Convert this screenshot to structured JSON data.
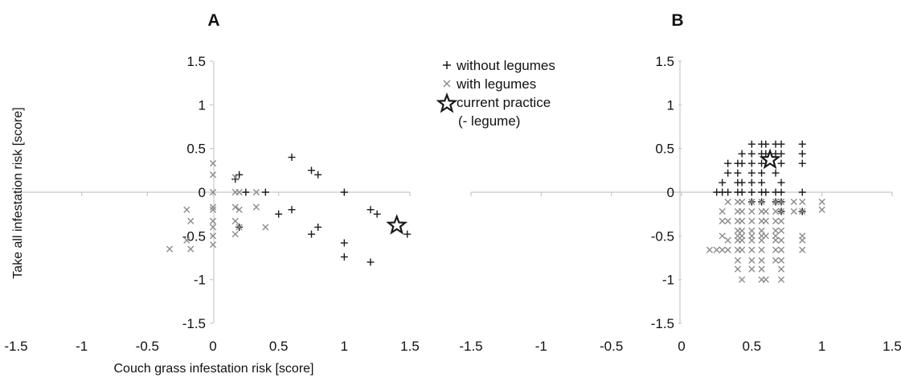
{
  "colors": {
    "without_legumes": "#1a1a1a",
    "with_legumes": "#8c8c8c",
    "axis": "#c8c8c8",
    "current_practice_star": "#1a1a1a"
  },
  "legend": {
    "without_legumes": "without legumes",
    "with_legumes": "with legumes",
    "current_practice_line1": "current practice",
    "current_practice_line2": "(- legume)"
  },
  "chart_data": [
    {
      "panel": "A",
      "type": "scatter",
      "title": "",
      "xlabel": "Couch grass infestation risk [score]",
      "ylabel": "Take all infestation risk [score]",
      "xlim": [
        -1.5,
        1.5
      ],
      "ylim": [
        -1.5,
        1.5
      ],
      "x_ticks": [
        "-1.5",
        "-1",
        "-0.5",
        "0",
        "0.5",
        "1",
        "1.5"
      ],
      "y_ticks": [
        "1.5",
        "1",
        "0.5",
        "0",
        "-0.5",
        "-1",
        "-1.5"
      ],
      "grid": false,
      "legend_position": "top-right",
      "series": [
        {
          "name": "without legumes",
          "marker": "plus",
          "points": [
            [
              0.6,
              0.4
            ],
            [
              0.75,
              0.25
            ],
            [
              0.8,
              0.2
            ],
            [
              0.2,
              0.2
            ],
            [
              0.17,
              0.15
            ],
            [
              0.25,
              0
            ],
            [
              0.4,
              0
            ],
            [
              1.0,
              0
            ],
            [
              0.6,
              -0.2
            ],
            [
              0.5,
              -0.25
            ],
            [
              0.8,
              -0.4
            ],
            [
              0.75,
              -0.48
            ],
            [
              0.2,
              -0.4
            ],
            [
              1.2,
              -0.2
            ],
            [
              1.25,
              -0.25
            ],
            [
              1.48,
              -0.48
            ],
            [
              1.0,
              -0.58
            ],
            [
              1.0,
              -0.74
            ],
            [
              1.2,
              -0.8
            ]
          ]
        },
        {
          "name": "with legumes",
          "marker": "x",
          "points": [
            [
              0,
              0.33
            ],
            [
              0,
              0.2
            ],
            [
              0,
              0
            ],
            [
              -0.2,
              -0.2
            ],
            [
              -0.33,
              -0.65
            ],
            [
              -0.2,
              -0.55
            ],
            [
              -0.17,
              -0.33
            ],
            [
              -0.17,
              -0.65
            ],
            [
              0,
              -0.17
            ],
            [
              0,
              -0.2
            ],
            [
              0,
              -0.33
            ],
            [
              0,
              -0.4
            ],
            [
              0,
              -0.5
            ],
            [
              0,
              -0.6
            ],
            [
              0.17,
              0.17
            ],
            [
              0.17,
              0
            ],
            [
              0.2,
              0
            ],
            [
              0.17,
              -0.17
            ],
            [
              0.2,
              -0.2
            ],
            [
              0.17,
              -0.33
            ],
            [
              0.2,
              -0.4
            ],
            [
              0.17,
              -0.48
            ],
            [
              0.33,
              0
            ],
            [
              0.33,
              -0.17
            ],
            [
              0.4,
              -0.4
            ]
          ]
        },
        {
          "name": "current practice (- legume)",
          "marker": "star",
          "points": [
            [
              1.4,
              -0.38
            ]
          ]
        }
      ]
    },
    {
      "panel": "B",
      "type": "scatter",
      "title": "",
      "xlabel": "",
      "ylabel": "",
      "xlim": [
        -1.5,
        1.5
      ],
      "ylim": [
        -1.5,
        1.5
      ],
      "x_ticks": [
        "-1.5",
        "-1",
        "-0.5",
        "0",
        "0.5",
        "1",
        "1.5"
      ],
      "y_ticks": [
        "1.5",
        "1",
        "0.5",
        "0",
        "-0.5",
        "-1",
        "-1.5"
      ],
      "grid": false,
      "series": [
        {
          "name": "without legumes",
          "marker": "plus",
          "points": [
            [
              0.5,
              0.55
            ],
            [
              0.57,
              0.55
            ],
            [
              0.6,
              0.55
            ],
            [
              0.67,
              0.55
            ],
            [
              0.71,
              0.55
            ],
            [
              0.86,
              0.55
            ],
            [
              0.43,
              0.44
            ],
            [
              0.5,
              0.44
            ],
            [
              0.57,
              0.44
            ],
            [
              0.6,
              0.44
            ],
            [
              0.67,
              0.44
            ],
            [
              0.71,
              0.44
            ],
            [
              0.86,
              0.44
            ],
            [
              0.33,
              0.33
            ],
            [
              0.4,
              0.33
            ],
            [
              0.43,
              0.33
            ],
            [
              0.5,
              0.33
            ],
            [
              0.57,
              0.33
            ],
            [
              0.6,
              0.33
            ],
            [
              0.71,
              0.33
            ],
            [
              0.86,
              0.33
            ],
            [
              0.33,
              0.22
            ],
            [
              0.4,
              0.22
            ],
            [
              0.5,
              0.22
            ],
            [
              0.57,
              0.22
            ],
            [
              0.67,
              0.22
            ],
            [
              0.29,
              0.11
            ],
            [
              0.4,
              0.11
            ],
            [
              0.43,
              0.11
            ],
            [
              0.5,
              0.11
            ],
            [
              0.57,
              0.11
            ],
            [
              0.71,
              0.11
            ],
            [
              0.25,
              0
            ],
            [
              0.29,
              0
            ],
            [
              0.33,
              0
            ],
            [
              0.4,
              0
            ],
            [
              0.43,
              0
            ],
            [
              0.5,
              0
            ],
            [
              0.57,
              0
            ],
            [
              0.6,
              0
            ],
            [
              0.67,
              0
            ],
            [
              0.71,
              0
            ],
            [
              0.86,
              0
            ],
            [
              0.5,
              -0.11
            ],
            [
              0.57,
              -0.11
            ],
            [
              0.67,
              -0.11
            ],
            [
              0.71,
              -0.11
            ],
            [
              0.71,
              -0.22
            ],
            [
              0.86,
              -0.22
            ]
          ]
        },
        {
          "name": "with legumes",
          "marker": "x",
          "points": [
            [
              0.33,
              -0.11
            ],
            [
              0.4,
              -0.11
            ],
            [
              0.43,
              -0.11
            ],
            [
              0.5,
              -0.11
            ],
            [
              0.57,
              -0.11
            ],
            [
              0.67,
              -0.11
            ],
            [
              0.71,
              -0.11
            ],
            [
              0.8,
              -0.11
            ],
            [
              0.86,
              -0.11
            ],
            [
              1.0,
              -0.11
            ],
            [
              0.29,
              -0.22
            ],
            [
              0.4,
              -0.22
            ],
            [
              0.43,
              -0.22
            ],
            [
              0.5,
              -0.22
            ],
            [
              0.57,
              -0.22
            ],
            [
              0.6,
              -0.22
            ],
            [
              0.67,
              -0.22
            ],
            [
              0.71,
              -0.22
            ],
            [
              0.8,
              -0.22
            ],
            [
              0.86,
              -0.22
            ],
            [
              1.0,
              -0.2
            ],
            [
              0.29,
              -0.33
            ],
            [
              0.33,
              -0.33
            ],
            [
              0.4,
              -0.33
            ],
            [
              0.43,
              -0.33
            ],
            [
              0.5,
              -0.33
            ],
            [
              0.57,
              -0.33
            ],
            [
              0.6,
              -0.33
            ],
            [
              0.67,
              -0.33
            ],
            [
              0.71,
              -0.33
            ],
            [
              0.4,
              -0.44
            ],
            [
              0.43,
              -0.44
            ],
            [
              0.5,
              -0.44
            ],
            [
              0.57,
              -0.44
            ],
            [
              0.67,
              -0.44
            ],
            [
              0.71,
              -0.44
            ],
            [
              0.86,
              -0.5
            ],
            [
              0.29,
              -0.5
            ],
            [
              0.4,
              -0.5
            ],
            [
              0.43,
              -0.5
            ],
            [
              0.5,
              -0.5
            ],
            [
              0.57,
              -0.5
            ],
            [
              0.6,
              -0.5
            ],
            [
              0.67,
              -0.5
            ],
            [
              0.33,
              -0.55
            ],
            [
              0.4,
              -0.55
            ],
            [
              0.43,
              -0.55
            ],
            [
              0.5,
              -0.55
            ],
            [
              0.57,
              -0.55
            ],
            [
              0.67,
              -0.55
            ],
            [
              0.71,
              -0.55
            ],
            [
              0.86,
              -0.55
            ],
            [
              0.2,
              -0.66
            ],
            [
              0.25,
              -0.66
            ],
            [
              0.29,
              -0.66
            ],
            [
              0.33,
              -0.66
            ],
            [
              0.4,
              -0.66
            ],
            [
              0.43,
              -0.66
            ],
            [
              0.5,
              -0.66
            ],
            [
              0.57,
              -0.66
            ],
            [
              0.67,
              -0.66
            ],
            [
              0.71,
              -0.66
            ],
            [
              0.86,
              -0.66
            ],
            [
              0.4,
              -0.78
            ],
            [
              0.5,
              -0.78
            ],
            [
              0.57,
              -0.78
            ],
            [
              0.67,
              -0.78
            ],
            [
              0.71,
              -0.78
            ],
            [
              0.4,
              -0.88
            ],
            [
              0.5,
              -0.88
            ],
            [
              0.57,
              -0.88
            ],
            [
              0.71,
              -0.88
            ],
            [
              0.43,
              -1.0
            ],
            [
              0.57,
              -1.0
            ],
            [
              0.6,
              -1.0
            ],
            [
              0.71,
              -1.0
            ]
          ]
        },
        {
          "name": "current practice (- legume)",
          "marker": "star",
          "points": [
            [
              0.63,
              0.37
            ]
          ]
        }
      ]
    }
  ]
}
